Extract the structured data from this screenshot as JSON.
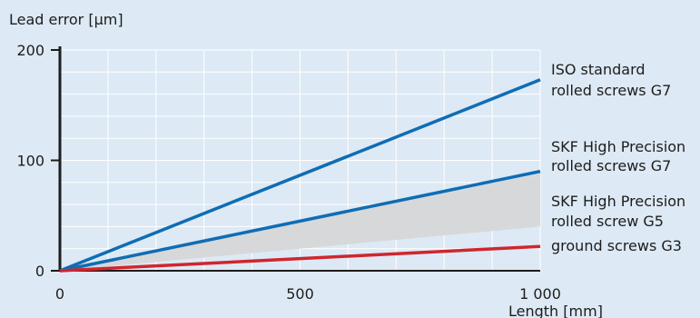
{
  "chart_data": {
    "type": "line",
    "title": "",
    "ylabel": "Lead error [µm]",
    "xlabel": "Length [mm]",
    "xlim": [
      0,
      1000
    ],
    "ylim": [
      0,
      200
    ],
    "x_ticks": [
      0,
      500,
      1000
    ],
    "x_tick_labels": [
      "0",
      "500",
      "1 000"
    ],
    "y_ticks": [
      0,
      100,
      200
    ],
    "y_tick_labels": [
      "0",
      "100",
      "200"
    ],
    "grid": true,
    "series": [
      {
        "name": "ISO standard rolled screws G7",
        "label_lines": [
          "ISO standard",
          "rolled screws G7"
        ],
        "color": "#0f6db3",
        "x": [
          0,
          1000
        ],
        "y": [
          0,
          173
        ]
      },
      {
        "name": "SKF High Precision rolled screws G7",
        "label_lines": [
          "SKF High Precision",
          "rolled screws G7"
        ],
        "color": "#0f6db3",
        "x": [
          0,
          1000
        ],
        "y": [
          0,
          90
        ]
      },
      {
        "name": "ground screws G3",
        "label_lines": [
          "ground screws G3"
        ],
        "color": "#d0262d",
        "x": [
          0,
          1000
        ],
        "y": [
          0,
          22
        ]
      }
    ],
    "bands": [
      {
        "name": "SKF High Precision rolled screw G5",
        "label_lines": [
          "SKF High Precision",
          "rolled screw G5"
        ],
        "color": "#d7d8da",
        "x": [
          0,
          1000
        ],
        "y_low": [
          0,
          40
        ],
        "y_high": [
          0,
          88
        ]
      }
    ]
  }
}
